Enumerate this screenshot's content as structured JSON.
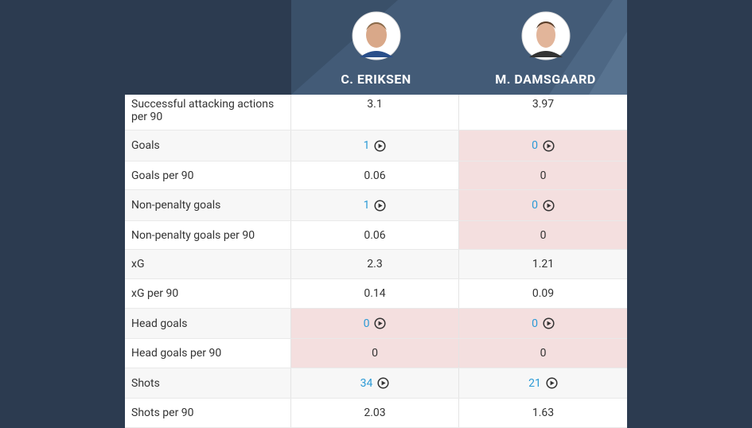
{
  "players": [
    {
      "name": "C. ERIKSEN"
    },
    {
      "name": "M. DAMSGAARD"
    }
  ],
  "table": {
    "rows": [
      {
        "label": "Successful attacking actions per 90",
        "cells": [
          {
            "value": "3.1"
          },
          {
            "value": "3.97"
          }
        ]
      },
      {
        "label": "Goals",
        "cells": [
          {
            "value": "1",
            "link": true
          },
          {
            "value": "0",
            "link": true,
            "highlight": true
          }
        ]
      },
      {
        "label": "Goals per 90",
        "cells": [
          {
            "value": "0.06"
          },
          {
            "value": "0",
            "highlight": true
          }
        ]
      },
      {
        "label": "Non-penalty goals",
        "cells": [
          {
            "value": "1",
            "link": true
          },
          {
            "value": "0",
            "link": true,
            "highlight": true
          }
        ]
      },
      {
        "label": "Non-penalty goals per 90",
        "cells": [
          {
            "value": "0.06"
          },
          {
            "value": "0",
            "highlight": true
          }
        ]
      },
      {
        "label": "xG",
        "cells": [
          {
            "value": "2.3"
          },
          {
            "value": "1.21"
          }
        ]
      },
      {
        "label": "xG per 90",
        "cells": [
          {
            "value": "0.14"
          },
          {
            "value": "0.09"
          }
        ]
      },
      {
        "label": "Head goals",
        "cells": [
          {
            "value": "0",
            "link": true,
            "highlight": true
          },
          {
            "value": "0",
            "link": true,
            "highlight": true
          }
        ]
      },
      {
        "label": "Head goals per 90",
        "cells": [
          {
            "value": "0",
            "highlight": true
          },
          {
            "value": "0",
            "highlight": true
          }
        ]
      },
      {
        "label": "Shots",
        "cells": [
          {
            "value": "34",
            "link": true
          },
          {
            "value": "21",
            "link": true
          }
        ]
      },
      {
        "label": "Shots per 90",
        "cells": [
          {
            "value": "2.03"
          },
          {
            "value": "1.63"
          }
        ]
      }
    ]
  }
}
